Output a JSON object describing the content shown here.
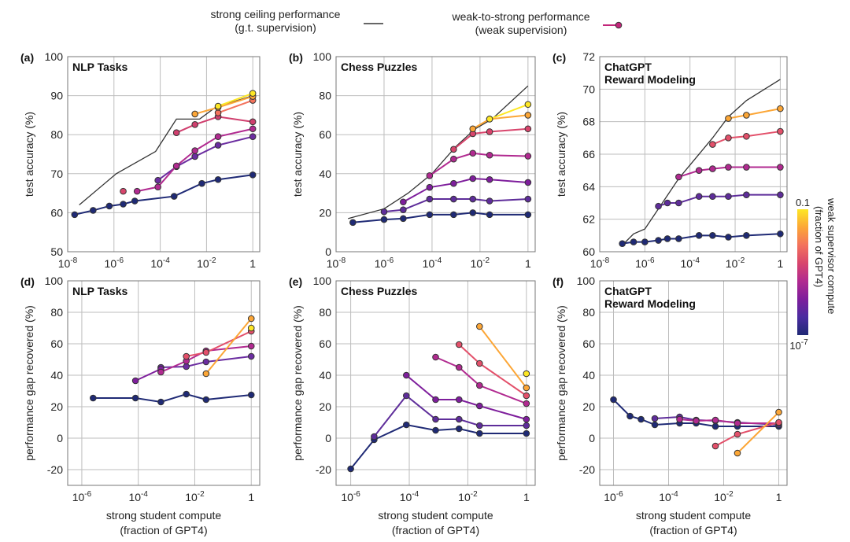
{
  "legend": {
    "ceiling_label_line1": "strong ceiling performance",
    "ceiling_label_line2": "(g.t. supervision)",
    "w2s_label_line1": "weak-to-strong performance",
    "w2s_label_line2": "(weak supervision)",
    "ceiling_color": "#333333",
    "w2s_color": "#c2267a"
  },
  "colorbar": {
    "title_line1": "weak supervisor compute",
    "title_line2": "(fraction of GPT4)",
    "top_label": "0.1",
    "bottom_label": "10",
    "bottom_exp": "-7",
    "colors": [
      "#fde725",
      "#fca636",
      "#f3725c",
      "#d8456c",
      "#b12a90",
      "#7e1e9c",
      "#4a2ca0",
      "#1f2a75"
    ]
  },
  "chart_data": [
    {
      "type": "line",
      "panel": "(a)",
      "title": "NLP Tasks",
      "xlabel": "",
      "ylabel": "test accuracy (%)",
      "xscale": "log",
      "xlim_exp": [
        -8,
        0.3
      ],
      "xticks_exp": [
        -8,
        -6,
        -4,
        -2,
        0
      ],
      "ylim": [
        50,
        100
      ],
      "yticks": [
        50,
        60,
        70,
        80,
        90,
        100
      ],
      "ceiling": {
        "name": "strong ceiling performance",
        "x_exp": [
          -7.5,
          -5.9,
          -4.2,
          -3.3,
          -2.3,
          -1.5,
          -0.8,
          0
        ],
        "y": [
          62,
          70,
          75.7,
          84,
          84,
          87.5,
          88.5,
          90
        ]
      },
      "series": [
        {
          "color": "#1f2a75",
          "x_exp": [
            -7.7,
            -6.9,
            -6.2,
            -5.6,
            -5.1,
            -3.4,
            -2.2,
            -1.5,
            0
          ],
          "y": [
            59.5,
            60.6,
            61.7,
            62.2,
            63.0,
            64.2,
            67.5,
            68.5,
            69.7
          ]
        },
        {
          "color": "#6b2da0",
          "x_exp": [
            -4.1,
            -3.3,
            -2.5,
            -1.5,
            0
          ],
          "y": [
            68.3,
            71.8,
            74.4,
            77.3,
            79.5
          ]
        },
        {
          "color": "#b12a90",
          "x_exp": [
            -5.0,
            -4.1,
            -3.3,
            -2.5,
            -1.5,
            0
          ],
          "y": [
            65.5,
            66.6,
            72.0,
            75.9,
            79.5,
            81.5
          ]
        },
        {
          "color": "#d8456c",
          "x_exp": [
            -5.6
          ],
          "y": [
            65.5
          ]
        },
        {
          "color": "#d03f6e",
          "x_exp": [
            -3.3,
            -2.5,
            -1.5,
            0
          ],
          "y": [
            80.5,
            82.6,
            84.6,
            83.3
          ]
        },
        {
          "color": "#f3725c",
          "x_exp": [
            -1.5,
            0
          ],
          "y": [
            85.6,
            88.8
          ]
        },
        {
          "color": "#fca636",
          "x_exp": [
            -2.5,
            -1.5,
            0
          ],
          "y": [
            85.3,
            87.0,
            89.8
          ]
        },
        {
          "color": "#fde725",
          "x_exp": [
            -1.5,
            0
          ],
          "y": [
            87.3,
            90.6
          ]
        }
      ]
    },
    {
      "type": "line",
      "panel": "(b)",
      "title": "Chess Puzzles",
      "xlabel": "",
      "ylabel": "test accuracy (%)",
      "xscale": "log",
      "xlim_exp": [
        -8,
        0.3
      ],
      "xticks_exp": [
        -8,
        -6,
        -4,
        -2,
        0
      ],
      "ylim": [
        0,
        100
      ],
      "yticks": [
        0,
        20,
        40,
        60,
        80,
        100
      ],
      "ceiling": {
        "name": "strong ceiling performance",
        "x_exp": [
          -7.5,
          -6.0,
          -5.0,
          -4.0,
          -3.0,
          -2.2,
          -1.5,
          0
        ],
        "y": [
          17,
          22,
          30,
          40,
          54,
          63,
          68,
          85
        ]
      },
      "series": [
        {
          "color": "#1f2a75",
          "x_exp": [
            -7.3,
            -6.0,
            -5.2,
            -4.1,
            -3.1,
            -2.3,
            -1.6,
            0
          ],
          "y": [
            15,
            16.5,
            17,
            19,
            19,
            20,
            19,
            19
          ]
        },
        {
          "color": "#5e2d9a",
          "x_exp": [
            -6.0,
            -5.2,
            -4.1,
            -3.1,
            -2.3,
            -1.6,
            0
          ],
          "y": [
            20.5,
            21.5,
            27,
            27,
            27,
            26,
            27
          ]
        },
        {
          "color": "#7e1e9c",
          "x_exp": [
            -5.2,
            -4.1,
            -3.1,
            -2.3,
            -1.6,
            0
          ],
          "y": [
            25.5,
            33,
            35,
            37.5,
            37,
            35.5
          ]
        },
        {
          "color": "#b12a90",
          "x_exp": [
            -4.1,
            -3.1,
            -2.3,
            -1.6,
            0
          ],
          "y": [
            39,
            47.5,
            50.5,
            49.5,
            49
          ]
        },
        {
          "color": "#d8456c",
          "x_exp": [
            -3.1,
            -2.3,
            -1.6,
            0
          ],
          "y": [
            52.5,
            60.5,
            61.5,
            63
          ]
        },
        {
          "color": "#fca636",
          "x_exp": [
            -2.3,
            -1.6,
            0
          ],
          "y": [
            63,
            68,
            70
          ]
        },
        {
          "color": "#fde725",
          "x_exp": [
            -1.6,
            0
          ],
          "y": [
            68,
            75.5
          ]
        }
      ]
    },
    {
      "type": "line",
      "panel": "(c)",
      "title": "ChatGPT Reward Modeling",
      "xlabel": "",
      "ylabel": "test accuracy (%)",
      "xscale": "log",
      "xlim_exp": [
        -8,
        0.3
      ],
      "xticks_exp": [
        -8,
        -6,
        -4,
        -2,
        0
      ],
      "ylim": [
        60,
        72
      ],
      "yticks": [
        60,
        62,
        64,
        66,
        68,
        70,
        72
      ],
      "ceiling": {
        "name": "strong ceiling performance",
        "x_exp": [
          -7.0,
          -6.5,
          -6.0,
          -4.5,
          -3.0,
          -2.3,
          -1.5,
          0
        ],
        "y": [
          60.4,
          61.1,
          61.4,
          64.5,
          67,
          68.3,
          69.3,
          70.6
        ]
      },
      "series": [
        {
          "color": "#1f2a75",
          "x_exp": [
            -7.0,
            -6.5,
            -6.0,
            -5.4,
            -5.0,
            -4.5,
            -3.6,
            -3.0,
            -2.3,
            -1.5,
            0
          ],
          "y": [
            60.5,
            60.6,
            60.6,
            60.7,
            60.8,
            60.8,
            61.0,
            61.0,
            60.9,
            61.0,
            61.1
          ]
        },
        {
          "color": "#5e2d9a",
          "x_exp": [
            -5.4,
            -5.0,
            -4.5,
            -3.6,
            -3.0,
            -2.3,
            -1.5,
            0
          ],
          "y": [
            62.8,
            63.0,
            63.0,
            63.4,
            63.4,
            63.4,
            63.5,
            63.5
          ]
        },
        {
          "color": "#b12a90",
          "x_exp": [
            -4.5,
            -3.6,
            -3.0,
            -2.3,
            -1.5,
            0
          ],
          "y": [
            64.6,
            65.0,
            65.1,
            65.2,
            65.2,
            65.2
          ]
        },
        {
          "color": "#e3506a",
          "x_exp": [
            -3.0,
            -2.3,
            -1.5,
            0
          ],
          "y": [
            66.6,
            67.0,
            67.1,
            67.4
          ]
        },
        {
          "color": "#fca636",
          "x_exp": [
            -2.3,
            -1.5,
            0
          ],
          "y": [
            68.2,
            68.4,
            68.8
          ]
        }
      ]
    },
    {
      "type": "line",
      "panel": "(d)",
      "title": "NLP Tasks",
      "xlabel": "strong student compute\n(fraction of GPT4)",
      "ylabel": "performance gap recovered (%)",
      "xscale": "log",
      "xlim_exp": [
        -6.5,
        0.3
      ],
      "xticks_exp": [
        -6,
        -4,
        -2,
        0
      ],
      "ylim": [
        -30,
        100
      ],
      "yticks": [
        -20,
        0,
        20,
        40,
        60,
        80,
        100
      ],
      "series": [
        {
          "color": "#1f2a75",
          "x_exp": [
            -5.6,
            -4.1,
            -3.2,
            -2.3,
            -1.6,
            0
          ],
          "y": [
            25.5,
            25.5,
            23,
            28,
            24.5,
            27.5
          ]
        },
        {
          "color": "#6b2da0",
          "x_exp": [
            -3.2,
            -2.3,
            -1.6,
            0
          ],
          "y": [
            45,
            45.5,
            48.5,
            52
          ]
        },
        {
          "color": "#7e1e9c",
          "x_exp": [
            -4.1,
            -3.2
          ],
          "y": [
            36.5,
            44
          ]
        },
        {
          "color": "#b12a90",
          "x_exp": [
            -3.2,
            -2.3,
            -1.6,
            0
          ],
          "y": [
            42,
            49,
            55.5,
            58.5
          ]
        },
        {
          "color": "#e3506a",
          "x_exp": [
            -2.3,
            -1.6,
            0
          ],
          "y": [
            52,
            54.5,
            68
          ]
        },
        {
          "color": "#fca636",
          "x_exp": [
            -1.6,
            0
          ],
          "y": [
            41,
            76
          ]
        },
        {
          "color": "#fde725",
          "x_exp": [
            0
          ],
          "y": [
            70
          ]
        }
      ]
    },
    {
      "type": "line",
      "panel": "(e)",
      "title": "Chess Puzzles",
      "xlabel": "strong student compute\n(fraction of GPT4)",
      "ylabel": "performance gap recovered (%)",
      "xscale": "log",
      "xlim_exp": [
        -6.5,
        0.3
      ],
      "xticks_exp": [
        -6,
        -4,
        -2,
        0
      ],
      "ylim": [
        -30,
        100
      ],
      "yticks": [
        -20,
        0,
        20,
        40,
        60,
        80,
        100
      ],
      "series": [
        {
          "color": "#1f2a75",
          "x_exp": [
            -6.0,
            -5.2,
            -4.1,
            -3.1,
            -2.3,
            -1.6,
            0
          ],
          "y": [
            -19.5,
            -1,
            8.5,
            5,
            6,
            3,
            3
          ]
        },
        {
          "color": "#5e2d9a",
          "x_exp": [
            -5.2,
            -4.1,
            -3.1,
            -2.3,
            -1.6,
            0
          ],
          "y": [
            1,
            27,
            12,
            12,
            8,
            8
          ]
        },
        {
          "color": "#7e1e9c",
          "x_exp": [
            -4.1,
            -3.1,
            -2.3,
            -1.6,
            0
          ],
          "y": [
            40,
            24.5,
            24.5,
            20.5,
            12
          ]
        },
        {
          "color": "#b12a90",
          "x_exp": [
            -3.1,
            -2.3,
            -1.6,
            0
          ],
          "y": [
            51.5,
            45,
            33.5,
            22
          ]
        },
        {
          "color": "#e3506a",
          "x_exp": [
            -2.3,
            -1.6,
            0
          ],
          "y": [
            59.5,
            47.5,
            27
          ]
        },
        {
          "color": "#fca636",
          "x_exp": [
            -1.6,
            0
          ],
          "y": [
            71,
            32
          ]
        },
        {
          "color": "#fde725",
          "x_exp": [
            0
          ],
          "y": [
            41
          ]
        }
      ]
    },
    {
      "type": "line",
      "panel": "(f)",
      "title": "ChatGPT Reward Modeling",
      "xlabel": "strong student compute\n(fraction of GPT4)",
      "ylabel": "performance gap recovered (%)",
      "xscale": "log",
      "xlim_exp": [
        -6.5,
        0.3
      ],
      "xticks_exp": [
        -6,
        -4,
        -2,
        0
      ],
      "ylim": [
        -30,
        100
      ],
      "yticks": [
        -20,
        0,
        20,
        40,
        60,
        80,
        100
      ],
      "series": [
        {
          "color": "#1f2a75",
          "x_exp": [
            -6.0,
            -5.4,
            -5.0,
            -4.5,
            -3.6,
            -3.0,
            -2.3,
            -1.5,
            0
          ],
          "y": [
            24.5,
            14,
            12,
            8.5,
            9.5,
            9.5,
            7.5,
            7.5,
            7.5
          ]
        },
        {
          "color": "#5e2d9a",
          "x_exp": [
            -4.5,
            -3.6,
            -3.0,
            -2.3,
            -1.5,
            0
          ],
          "y": [
            12.5,
            13.5,
            11.5,
            11,
            10,
            8.5
          ]
        },
        {
          "color": "#b12a90",
          "x_exp": [
            -3.6,
            -3.0,
            -2.3,
            -1.5,
            0
          ],
          "y": [
            12,
            11,
            11.5,
            9.5,
            9.5
          ]
        },
        {
          "color": "#e3506a",
          "x_exp": [
            -2.3,
            -1.5,
            0
          ],
          "y": [
            -5,
            2.5,
            10
          ]
        },
        {
          "color": "#fca636",
          "x_exp": [
            -1.5,
            0
          ],
          "y": [
            -9.5,
            16.5
          ]
        }
      ]
    }
  ]
}
